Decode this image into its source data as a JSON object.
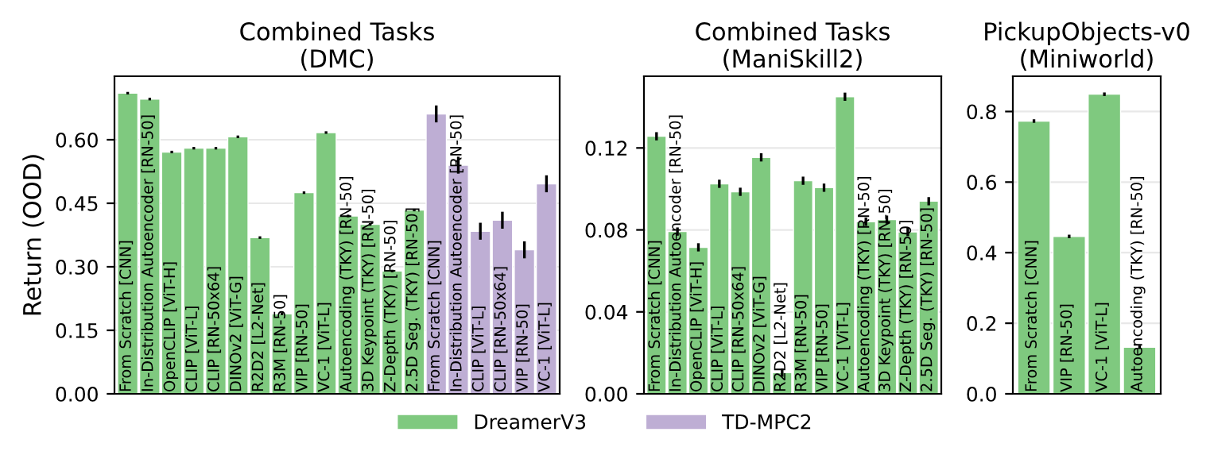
{
  "chart_data": [
    {
      "type": "bar",
      "title": "Combined Tasks\n(DMC)",
      "ylabel": "Return (OOD)",
      "categories": [
        "From Scratch [CNN]",
        "In-Distribution Autoencoder [RN-50]",
        "OpenCLIP [ViT-H]",
        "CLIP [ViT-L]",
        "CLIP [RN-50x64]",
        "DINOv2 [ViT-G]",
        "R2D2 [L2-Net]",
        "R3M [RN-50]",
        "VIP [RN-50]",
        "VC-1 [ViT-L]",
        "Autoencoding (TKY) [RN-50]",
        "3D Keypoint (TKY) [RN-50]",
        "Z-Depth (TKY) [RN-50]",
        "2.5D Seg. (TKY) [RN-50]",
        "From Scratch [CNN]",
        "In-Distribution Autoencoder [RN-50]",
        "CLIP [ViT-L]",
        "CLIP [RN-50x64]",
        "VIP [RN-50]",
        "VC-1 [ViT-L]"
      ],
      "series": [
        {
          "name": "DreamerV3",
          "color": "#7fc97f",
          "values": [
            0.71,
            0.696,
            0.571,
            0.58,
            0.58,
            0.607,
            0.369,
            0.189,
            0.475,
            0.617,
            0.42,
            0.4,
            0.29,
            0.434,
            null,
            null,
            null,
            null,
            null,
            null
          ],
          "errors": [
            0.003,
            0.003,
            0.003,
            0.003,
            0.003,
            0.003,
            0.003,
            0.003,
            0.003,
            0.003,
            0.003,
            0.003,
            0.003,
            0.003,
            null,
            null,
            null,
            null,
            null,
            null
          ]
        },
        {
          "name": "TD-MPC2",
          "color": "#beaed4",
          "values": [
            null,
            null,
            null,
            null,
            null,
            null,
            null,
            null,
            null,
            null,
            null,
            null,
            null,
            null,
            0.661,
            0.54,
            0.384,
            0.41,
            0.34,
            0.496
          ],
          "errors": [
            null,
            null,
            null,
            null,
            null,
            null,
            null,
            null,
            null,
            null,
            null,
            null,
            null,
            null,
            0.02,
            0.02,
            0.02,
            0.02,
            0.02,
            0.02
          ]
        }
      ],
      "ylim": [
        0,
        0.75
      ],
      "yticks": [
        {
          "value": 0,
          "label": "0.00"
        },
        {
          "value": 0.15,
          "label": "0.15"
        },
        {
          "value": 0.3,
          "label": "0.30"
        },
        {
          "value": 0.45,
          "label": "0.45"
        },
        {
          "value": 0.6,
          "label": "0.60"
        }
      ],
      "grid": "y",
      "legend": "bottom",
      "tick_labels": "y"
    },
    {
      "type": "bar",
      "title": "Combined Tasks\n(ManiSkill2)",
      "categories": [
        "From Scratch [CNN]",
        "In-Distribution Autoencoder [RN-50]",
        "OpenCLIP [ViT-H]",
        "CLIP [ViT-L]",
        "CLIP [RN-50x64]",
        "DINOv2 [ViT-G]",
        "R2D2 [L2-Net]",
        "R3M [RN-50]",
        "VIP [RN-50]",
        "VC-1 [ViT-L]",
        "Autoencoding (TKY) [RN-50]",
        "3D Keypoint (TKY) [RN-50]",
        "Z-Depth (TKY) [RN-50]",
        "2.5D Seg. (TKY) [RN-50]"
      ],
      "series": [
        {
          "color": "#7fc97f",
          "values": [
            0.1257,
            0.0792,
            0.0715,
            0.1025,
            0.0986,
            0.1154,
            0.0103,
            0.104,
            0.1006,
            0.145,
            0.084,
            0.085,
            0.079,
            0.094
          ],
          "errors": [
            0.002,
            0.002,
            0.002,
            0.002,
            0.002,
            0.002,
            0.002,
            0.002,
            0.002,
            0.002,
            0.002,
            0.002,
            0.002,
            0.002
          ]
        }
      ],
      "ylim": [
        0,
        0.155
      ],
      "yticks": [
        {
          "value": 0,
          "label": "0.00"
        },
        {
          "value": 0.04,
          "label": "0.04"
        },
        {
          "value": 0.08,
          "label": "0.08"
        },
        {
          "value": 0.12,
          "label": "0.12"
        }
      ],
      "grid": "y",
      "tick_labels": "y"
    },
    {
      "type": "bar",
      "title": "PickupObjects-v0\n(Miniworld)",
      "categories": [
        "From Scratch [CNN]",
        "VIP [RN-50]",
        "VC-1 [ViT-L]",
        "Autoencoding (TKY) [RN-50]"
      ],
      "series": [
        {
          "color": "#7fc97f",
          "values": [
            0.773,
            0.446,
            0.849,
            0.132
          ],
          "errors": [
            0.005,
            0.005,
            0.005,
            0.005
          ]
        }
      ],
      "ylim": [
        0,
        0.9
      ],
      "yticks": [
        {
          "value": 0,
          "label": "0.0"
        },
        {
          "value": 0.2,
          "label": "0.2"
        },
        {
          "value": 0.4,
          "label": "0.4"
        },
        {
          "value": 0.6,
          "label": "0.6"
        },
        {
          "value": 0.8,
          "label": "0.8"
        }
      ],
      "grid": "y",
      "tick_labels": "y"
    }
  ]
}
